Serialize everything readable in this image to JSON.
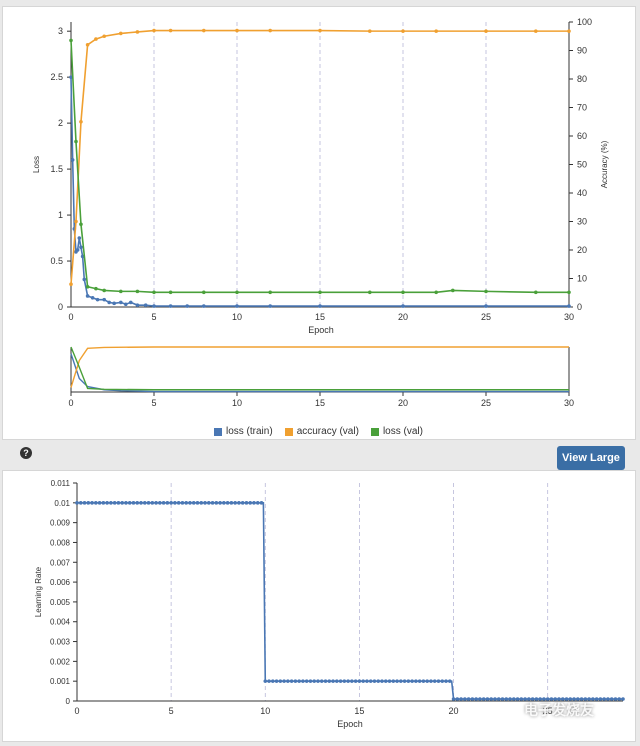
{
  "view_large_label": "View Large",
  "help_icon_glyph": "?",
  "watermark": "电子发烧友",
  "colors": {
    "train_loss": "#4a77b4",
    "val_accuracy": "#f0a030",
    "val_loss": "#4aa03a",
    "lr": "#4a77b4",
    "button": "#3a6ea5"
  },
  "chart_data": [
    {
      "type": "line",
      "title": "",
      "xlabel": "Epoch",
      "ylabel": "Loss",
      "y2label": "Accuracy (%)",
      "xlim": [
        0,
        30
      ],
      "ylim": [
        0,
        3.1
      ],
      "y2lim": [
        0,
        100
      ],
      "xticks": [
        "0",
        "5",
        "10",
        "15",
        "20",
        "25",
        "30"
      ],
      "yticks": [
        "0",
        "0.5",
        "1",
        "1.5",
        "2",
        "2.5",
        "3"
      ],
      "y2ticks": [
        "0",
        "10",
        "20",
        "30",
        "40",
        "50",
        "60",
        "70",
        "80",
        "90",
        "100"
      ],
      "grid": "vertical dashed",
      "series": [
        {
          "name": "loss (train)",
          "axis": "left",
          "x": [
            0,
            0.1,
            0.2,
            0.3,
            0.4,
            0.5,
            0.6,
            0.7,
            0.8,
            1,
            1.3,
            1.6,
            2,
            2.3,
            2.6,
            3,
            3.3,
            3.6,
            4,
            4.5,
            5,
            6,
            7,
            8,
            10,
            12,
            15,
            20,
            25,
            30
          ],
          "y": [
            2.5,
            1.6,
            0.85,
            0.6,
            0.62,
            0.75,
            0.65,
            0.55,
            0.3,
            0.12,
            0.1,
            0.08,
            0.08,
            0.05,
            0.04,
            0.05,
            0.03,
            0.05,
            0.02,
            0.02,
            0.01,
            0.01,
            0.01,
            0.01,
            0.01,
            0.01,
            0.01,
            0.01,
            0.01,
            0.01
          ]
        },
        {
          "name": "accuracy (val)",
          "axis": "right",
          "x": [
            0,
            0.3,
            0.6,
            1,
            1.5,
            2,
            3,
            4,
            5,
            6,
            8,
            10,
            12,
            15,
            18,
            20,
            22,
            25,
            28,
            30
          ],
          "y": [
            8,
            30,
            65,
            92,
            94,
            95,
            96,
            96.5,
            97,
            97,
            97,
            97,
            97,
            97,
            96.8,
            96.8,
            96.8,
            96.8,
            96.8,
            96.8
          ]
        },
        {
          "name": "loss (val)",
          "axis": "left",
          "x": [
            0,
            0.3,
            0.6,
            1,
            1.5,
            2,
            3,
            4,
            5,
            6,
            8,
            10,
            12,
            15,
            18,
            20,
            22,
            23,
            25,
            28,
            30
          ],
          "y": [
            2.9,
            1.8,
            0.9,
            0.22,
            0.2,
            0.18,
            0.17,
            0.17,
            0.16,
            0.16,
            0.16,
            0.16,
            0.16,
            0.16,
            0.16,
            0.16,
            0.16,
            0.18,
            0.17,
            0.16,
            0.16
          ]
        }
      ]
    },
    {
      "type": "line",
      "title": "",
      "xlabel": "",
      "ylabel": "",
      "xlim": [
        0,
        30
      ],
      "xticks": [
        "0",
        "5",
        "10",
        "15",
        "20",
        "25",
        "30"
      ],
      "grid": "none",
      "series": [
        {
          "name": "loss (train)",
          "x": [
            0,
            0.5,
            1,
            2,
            3,
            5,
            10,
            30
          ],
          "y": [
            0.85,
            0.3,
            0.12,
            0.05,
            0.03,
            0.01,
            0.01,
            0.01
          ]
        },
        {
          "name": "accuracy (val)",
          "x": [
            0,
            0.5,
            1,
            2,
            5,
            10,
            30
          ],
          "y": [
            0.1,
            0.7,
            0.97,
            0.99,
            1,
            1,
            1
          ]
        },
        {
          "name": "loss (val)",
          "x": [
            0,
            0.5,
            1,
            2,
            5,
            10,
            30
          ],
          "y": [
            1,
            0.55,
            0.08,
            0.06,
            0.05,
            0.05,
            0.05
          ]
        }
      ]
    },
    {
      "type": "line",
      "title": "",
      "xlabel": "Epoch",
      "ylabel": "Learning Rate",
      "xlim": [
        0,
        29
      ],
      "ylim": [
        0,
        0.011
      ],
      "xticks": [
        "0",
        "5",
        "10",
        "15",
        "20",
        "25"
      ],
      "yticks": [
        "0",
        "0.001",
        "0.002",
        "0.003",
        "0.004",
        "0.005",
        "0.006",
        "0.007",
        "0.008",
        "0.009",
        "0.01",
        "0.011"
      ],
      "grid": "vertical dashed",
      "series": [
        {
          "name": "learning rate",
          "x": [
            0,
            9.9,
            10,
            19.9,
            20,
            29
          ],
          "y": [
            0.01,
            0.01,
            0.001,
            0.001,
            0.0001,
            0.0001
          ]
        }
      ]
    }
  ],
  "legend": [
    "loss (train)",
    "accuracy (val)",
    "loss (val)"
  ]
}
